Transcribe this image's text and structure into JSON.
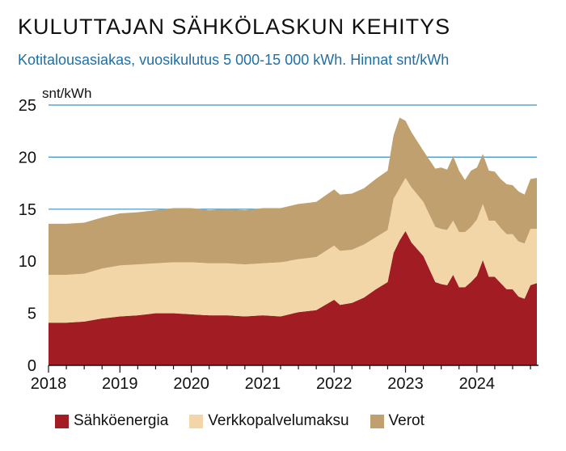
{
  "title": "KULUTTAJAN SÄHKÖLASKUN KEHITYS",
  "subtitle": "Kotitalousasiakas, vuosikulutus 5 000-15 000 kWh. Hinnat snt/kWh",
  "colors": {
    "energy": "#a11d23",
    "network": "#f3d6a8",
    "taxes": "#c0a06e",
    "gridline": "#3d8fc4",
    "axis": "#111111"
  },
  "chart_data": {
    "type": "area",
    "stacked": true,
    "ylabel": "snt/kWh",
    "ylim": [
      0,
      25
    ],
    "yticks": [
      0,
      5,
      10,
      15,
      20,
      25
    ],
    "ytick_labels": [
      "0",
      "5",
      "10",
      "15",
      "20",
      "25"
    ],
    "xlim": [
      2018.0,
      2024.84
    ],
    "xtick_labels": [
      "2018",
      "2019",
      "2020",
      "2021",
      "2022",
      "2023",
      "2024"
    ],
    "grid": true,
    "legend_position": "bottom",
    "x": [
      2018.0,
      2018.25,
      2018.5,
      2018.75,
      2019.0,
      2019.25,
      2019.5,
      2019.75,
      2020.0,
      2020.25,
      2020.5,
      2020.75,
      2021.0,
      2021.25,
      2021.5,
      2021.75,
      2022.0,
      2022.083,
      2022.25,
      2022.417,
      2022.583,
      2022.75,
      2022.833,
      2022.917,
      2023.0,
      2023.083,
      2023.25,
      2023.417,
      2023.5,
      2023.583,
      2023.667,
      2023.75,
      2023.833,
      2023.917,
      2024.0,
      2024.083,
      2024.167,
      2024.25,
      2024.333,
      2024.417,
      2024.5,
      2024.583,
      2024.667,
      2024.75,
      2024.84
    ],
    "series": [
      {
        "name": "Sähköenergia",
        "color": "#a11d23",
        "values": [
          4.1,
          4.1,
          4.2,
          4.5,
          4.7,
          4.8,
          5.0,
          5.0,
          4.9,
          4.8,
          4.8,
          4.7,
          4.8,
          4.7,
          5.1,
          5.3,
          6.3,
          5.8,
          6.0,
          6.5,
          7.3,
          8.0,
          10.8,
          12.0,
          12.9,
          11.8,
          10.5,
          8.0,
          7.8,
          7.7,
          8.7,
          7.5,
          7.5,
          8.0,
          8.6,
          10.1,
          8.5,
          8.5,
          7.9,
          7.3,
          7.3,
          6.6,
          6.4,
          7.7,
          7.9
        ]
      },
      {
        "name": "Verkkopalvelumaksu",
        "color": "#f3d6a8",
        "values": [
          4.6,
          4.6,
          4.6,
          4.8,
          4.9,
          4.9,
          4.8,
          4.9,
          5.0,
          5.0,
          5.0,
          5.0,
          5.0,
          5.2,
          5.1,
          5.1,
          5.2,
          5.2,
          5.1,
          5.1,
          5.0,
          5.0,
          5.2,
          5.0,
          5.1,
          5.3,
          5.2,
          5.3,
          5.3,
          5.3,
          5.2,
          5.3,
          5.3,
          5.3,
          5.4,
          5.4,
          5.4,
          5.4,
          5.3,
          5.3,
          5.3,
          5.3,
          5.3,
          5.4,
          5.2
        ]
      },
      {
        "name": "Verot",
        "color": "#c0a06e",
        "values": [
          4.9,
          4.9,
          4.9,
          4.9,
          5.0,
          5.0,
          5.1,
          5.2,
          5.2,
          5.1,
          5.2,
          5.2,
          5.3,
          5.2,
          5.3,
          5.3,
          5.4,
          5.4,
          5.4,
          5.4,
          5.6,
          5.7,
          6.1,
          6.8,
          5.5,
          5.3,
          4.9,
          5.6,
          5.9,
          5.8,
          6.2,
          5.9,
          5.0,
          5.4,
          5.0,
          4.8,
          4.8,
          4.7,
          4.7,
          4.8,
          4.7,
          4.8,
          4.7,
          4.8,
          4.9
        ]
      }
    ]
  }
}
